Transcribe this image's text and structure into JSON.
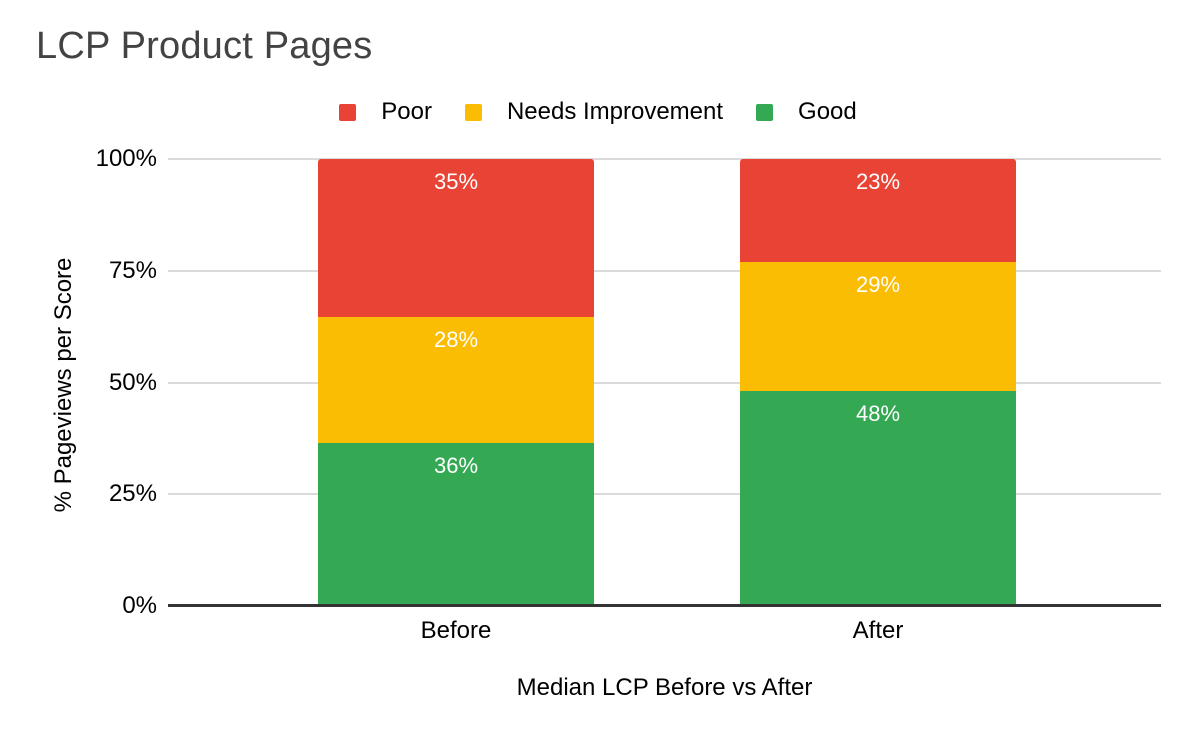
{
  "chart_title": "LCP Product Pages",
  "colors": {
    "poor": "#E94335",
    "needs_improvement": "#FBBC04",
    "good": "#34A853",
    "gridline": "#dadada",
    "axis_line": "#333333",
    "title_text": "#434343",
    "label_text": "#000000",
    "data_label_text": "#ffffff"
  },
  "legend": [
    {
      "label": "Poor",
      "color": "#E94335"
    },
    {
      "label": "Needs Improvement",
      "color": "#FBBC04"
    },
    {
      "label": "Good",
      "color": "#34A853"
    }
  ],
  "y_axis": {
    "title": "% Pageviews per Score",
    "ticks": [
      "0%",
      "25%",
      "50%",
      "75%",
      "100%"
    ]
  },
  "x_axis": {
    "title": "Median LCP Before vs After"
  },
  "chart_data": {
    "type": "bar",
    "stacked": true,
    "stacked_mode": "percent",
    "title": "LCP Product Pages",
    "xlabel": "Median LCP Before vs After",
    "ylabel": "% Pageviews per Score",
    "ylim": [
      0,
      100
    ],
    "grid": true,
    "legend_position": "top",
    "categories": [
      "Before",
      "After"
    ],
    "series": [
      {
        "name": "Poor",
        "color": "#E94335",
        "values": [
          35,
          23
        ]
      },
      {
        "name": "Needs Improvement",
        "color": "#FBBC04",
        "values": [
          28,
          29
        ]
      },
      {
        "name": "Good",
        "color": "#34A853",
        "values": [
          36,
          48
        ]
      }
    ],
    "data_label_suffix": "%",
    "data_labels": {
      "Before": {
        "Poor": "35%",
        "Needs Improvement": "28%",
        "Good": "36%"
      },
      "After": {
        "Poor": "23%",
        "Needs Improvement": "29%",
        "Good": "48%"
      }
    }
  }
}
